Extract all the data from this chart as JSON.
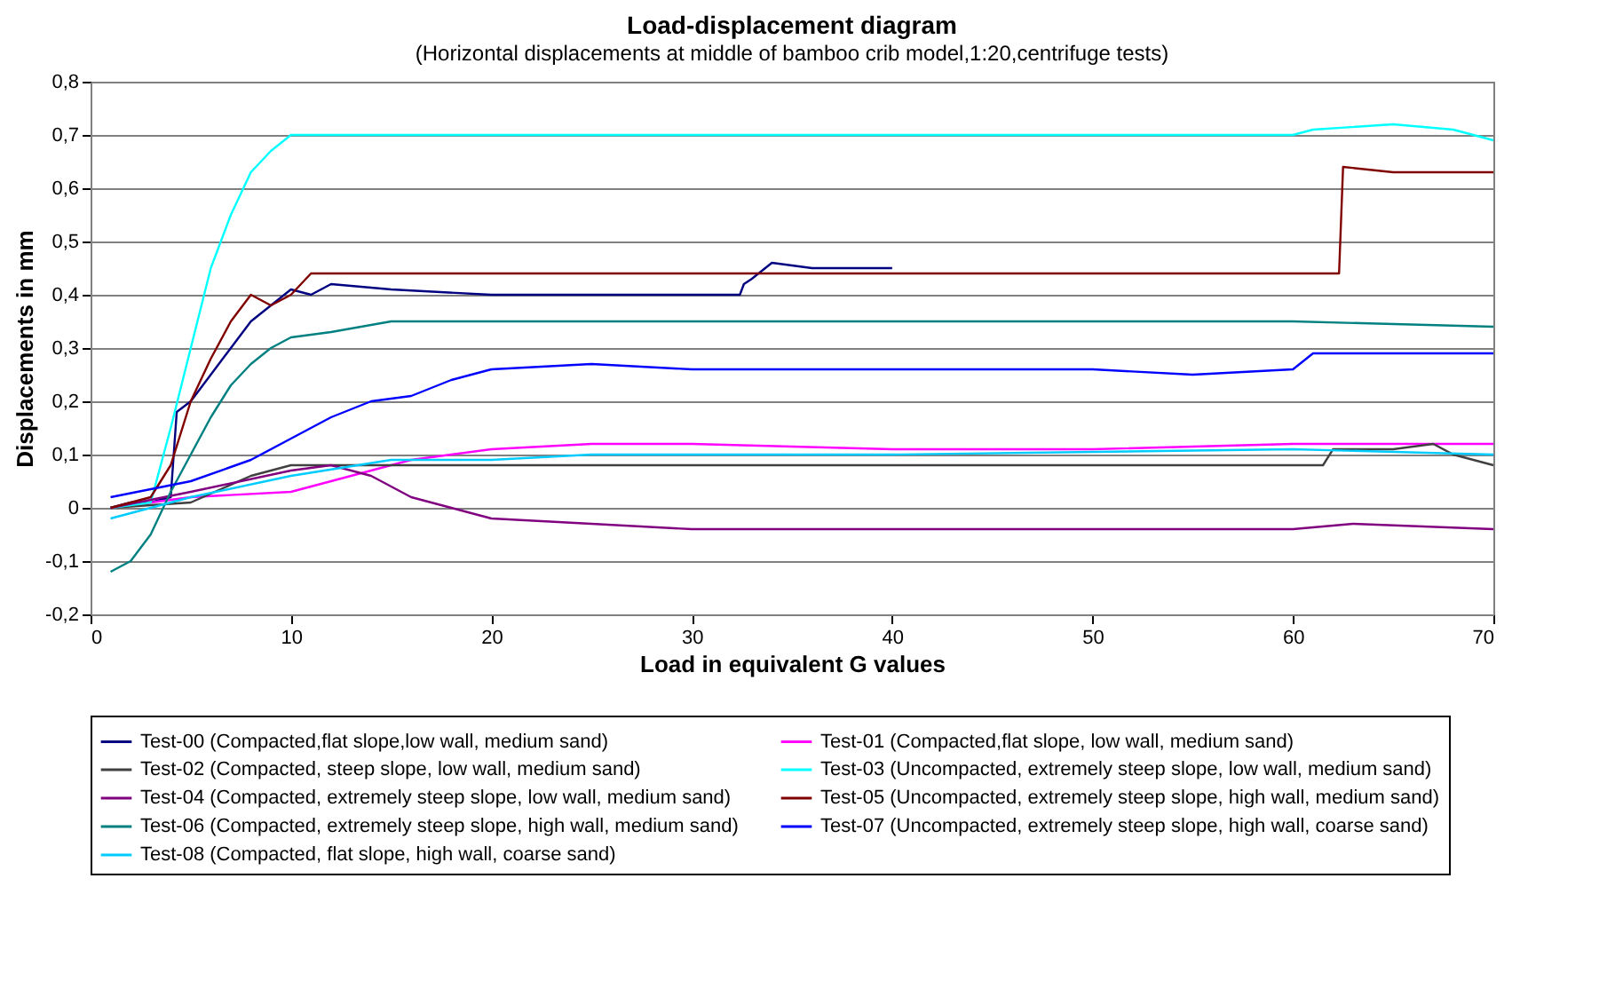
{
  "chart_data": {
    "type": "line",
    "title": "Load-displacement diagram",
    "subtitle": "(Horizontal displacements at middle of bamboo crib model,1:20,centrifuge tests)",
    "xlabel": "Load in equivalent G values",
    "ylabel": "Displacements in mm",
    "xlim": [
      0,
      70
    ],
    "xticks": [
      0,
      10,
      20,
      30,
      40,
      50,
      60,
      70
    ],
    "ylim": [
      -0.2,
      0.8
    ],
    "yticks": [
      {
        "value": -0.2,
        "label": "-0,2"
      },
      {
        "value": -0.1,
        "label": "-0,1"
      },
      {
        "value": 0,
        "label": "0"
      },
      {
        "value": 0.1,
        "label": "0,1"
      },
      {
        "value": 0.2,
        "label": "0,2"
      },
      {
        "value": 0.3,
        "label": "0,3"
      },
      {
        "value": 0.4,
        "label": "0,4"
      },
      {
        "value": 0.5,
        "label": "0,5"
      },
      {
        "value": 0.6,
        "label": "0,6"
      },
      {
        "value": 0.7,
        "label": "0,7"
      },
      {
        "value": 0.8,
        "label": "0,8"
      }
    ],
    "grid": "y",
    "legend": "bottom",
    "line_style": "solid",
    "series": [
      {
        "name": "Test-00 (Compacted,flat slope,low wall, medium sand)",
        "color": "#000080",
        "x": [
          1,
          2,
          3,
          4,
          4.3,
          5,
          6,
          7,
          8,
          9,
          10,
          11,
          12,
          15,
          20,
          25,
          30,
          32.4,
          32.6,
          33,
          34,
          36,
          38,
          40
        ],
        "values": [
          0.0,
          0.01,
          0.01,
          0.02,
          0.18,
          0.2,
          0.25,
          0.3,
          0.35,
          0.38,
          0.41,
          0.4,
          0.42,
          0.41,
          0.4,
          0.4,
          0.4,
          0.4,
          0.42,
          0.43,
          0.46,
          0.45,
          0.45,
          0.45
        ]
      },
      {
        "name": "Test-01 (Compacted,flat slope, low wall, medium sand)",
        "color": "#ff00ff",
        "x": [
          1,
          5,
          10,
          12,
          14,
          16,
          18,
          20,
          25,
          30,
          40,
          50,
          60,
          70
        ],
        "values": [
          0.0,
          0.02,
          0.03,
          0.05,
          0.07,
          0.09,
          0.1,
          0.11,
          0.12,
          0.12,
          0.11,
          0.11,
          0.12,
          0.12
        ]
      },
      {
        "name": "Test-02 (Compacted, steep slope, low wall, medium sand)",
        "color": "#404040",
        "x": [
          1,
          5,
          8,
          10,
          15,
          20,
          30,
          40,
          50,
          60,
          61.5,
          62,
          65,
          67,
          68,
          70
        ],
        "values": [
          0.0,
          0.01,
          0.06,
          0.08,
          0.08,
          0.08,
          0.08,
          0.08,
          0.08,
          0.08,
          0.08,
          0.11,
          0.11,
          0.12,
          0.1,
          0.08
        ]
      },
      {
        "name": "Test-03 (Uncompacted, extremely steep slope, low wall, medium sand)",
        "color": "#00ffff",
        "x": [
          1,
          3,
          4,
          5,
          6,
          7,
          8,
          9,
          10,
          15,
          20,
          30,
          40,
          50,
          60,
          61,
          65,
          68,
          70
        ],
        "values": [
          0.0,
          0.01,
          0.15,
          0.3,
          0.45,
          0.55,
          0.63,
          0.67,
          0.7,
          0.7,
          0.7,
          0.7,
          0.7,
          0.7,
          0.7,
          0.71,
          0.72,
          0.71,
          0.69
        ]
      },
      {
        "name": "Test-04 (Compacted, extremely steep slope, low wall, medium sand)",
        "color": "#800080",
        "x": [
          1,
          5,
          10,
          12,
          14,
          16,
          18,
          20,
          25,
          30,
          40,
          50,
          60,
          63,
          70
        ],
        "values": [
          0.0,
          0.03,
          0.07,
          0.08,
          0.06,
          0.02,
          0.0,
          -0.02,
          -0.03,
          -0.04,
          -0.04,
          -0.04,
          -0.04,
          -0.03,
          -0.04
        ]
      },
      {
        "name": "Test-05 (Uncompacted, extremely steep slope, high wall, medium sand)",
        "color": "#800000",
        "x": [
          1,
          3,
          4,
          5,
          6,
          7,
          8,
          9,
          10,
          11,
          15,
          20,
          30,
          40,
          50,
          62.3,
          62.5,
          65,
          70
        ],
        "values": [
          0.0,
          0.02,
          0.08,
          0.2,
          0.28,
          0.35,
          0.4,
          0.38,
          0.4,
          0.44,
          0.44,
          0.44,
          0.44,
          0.44,
          0.44,
          0.44,
          0.64,
          0.63,
          0.63
        ]
      },
      {
        "name": "Test-06 (Compacted, extremely steep slope, high wall, medium sand)",
        "color": "#008080",
        "x": [
          1,
          2,
          3,
          4,
          5,
          6,
          7,
          8,
          9,
          10,
          12,
          15,
          20,
          30,
          40,
          50,
          60,
          70
        ],
        "values": [
          -0.12,
          -0.1,
          -0.05,
          0.03,
          0.1,
          0.17,
          0.23,
          0.27,
          0.3,
          0.32,
          0.33,
          0.35,
          0.35,
          0.35,
          0.35,
          0.35,
          0.35,
          0.34
        ]
      },
      {
        "name": "Test-07 (Uncompacted, extremely steep slope, high wall, coarse sand)",
        "color": "#0000ff",
        "x": [
          1,
          5,
          8,
          10,
          12,
          14,
          16,
          18,
          20,
          25,
          30,
          40,
          50,
          55,
          60,
          61,
          65,
          70
        ],
        "values": [
          0.02,
          0.05,
          0.09,
          0.13,
          0.17,
          0.2,
          0.21,
          0.24,
          0.26,
          0.27,
          0.26,
          0.26,
          0.26,
          0.25,
          0.26,
          0.29,
          0.29,
          0.29
        ]
      },
      {
        "name": "Test-08 (Compacted, flat slope, high wall, coarse sand)",
        "color": "#00ccff",
        "x": [
          1,
          5,
          10,
          15,
          20,
          25,
          40,
          60,
          70
        ],
        "values": [
          -0.02,
          0.02,
          0.06,
          0.09,
          0.09,
          0.1,
          0.1,
          0.11,
          0.1
        ]
      }
    ]
  }
}
